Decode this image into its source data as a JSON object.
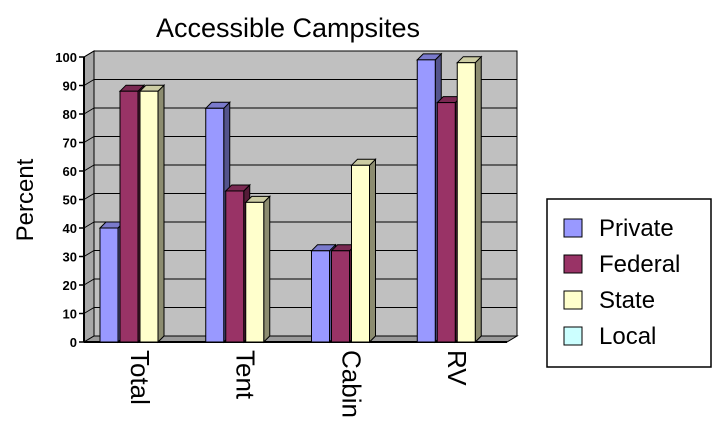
{
  "chart_data": {
    "type": "bar",
    "title": "Accessible Campsites",
    "xlabel": "",
    "ylabel": "Percent",
    "ylim": [
      0,
      100
    ],
    "yticks": [
      0,
      10,
      20,
      30,
      40,
      50,
      60,
      70,
      80,
      90,
      100
    ],
    "grid": true,
    "legend_position": "right",
    "categories": [
      "Total",
      "Tent",
      "Cabin",
      "RV"
    ],
    "series": [
      {
        "name": "Private",
        "color": "#9999ff",
        "values": [
          40,
          82,
          32,
          99
        ]
      },
      {
        "name": "Federal",
        "color": "#993366",
        "values": [
          88,
          53,
          32,
          84
        ]
      },
      {
        "name": "State",
        "color": "#ffffcc",
        "values": [
          88,
          49,
          62,
          98
        ]
      },
      {
        "name": "Local",
        "color": "#ccffff",
        "values": [
          null,
          null,
          null,
          null
        ]
      }
    ],
    "wall_color": "#c0c0c0"
  }
}
